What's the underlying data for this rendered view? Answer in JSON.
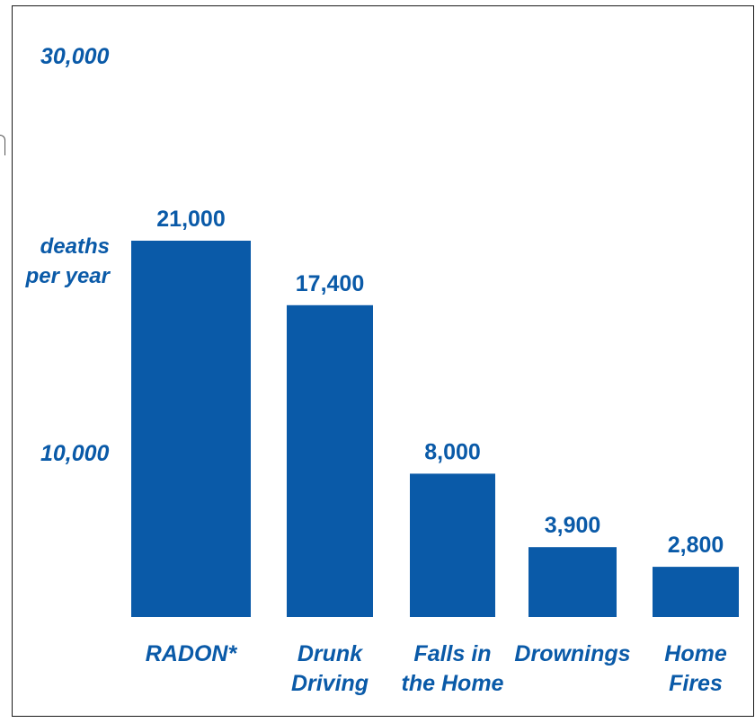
{
  "chart_data": {
    "type": "bar",
    "categories": [
      [
        "RADON*"
      ],
      [
        "Drunk",
        "Driving"
      ],
      [
        "Falls in",
        "the Home"
      ],
      [
        "Drownings"
      ],
      [
        "Home",
        "Fires"
      ]
    ],
    "values": [
      21000,
      17400,
      8000,
      3900,
      2800
    ],
    "value_labels": [
      "21,000",
      "17,400",
      "8,000",
      "3,900",
      "2,800"
    ],
    "ytick_values": [
      10000,
      30000
    ],
    "ytick_labels": [
      "10,000",
      "30,000"
    ],
    "ylabel": [
      "deaths",
      "per year"
    ],
    "ylim": [
      0,
      30000
    ],
    "grid": false,
    "bar_color": "#0a5aa8",
    "text_color": "#0a5aa8"
  }
}
